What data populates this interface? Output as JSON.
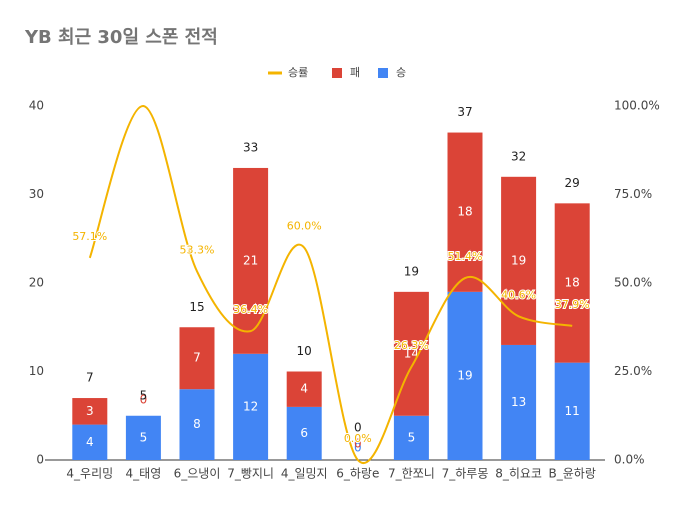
{
  "chart_data": {
    "type": "bar",
    "title": "YB 최근 30일 스폰 전적",
    "categories": [
      "4_우리밍",
      "4_태영",
      "6_으냉이",
      "7_빵지니",
      "4_일밍지",
      "6_하랑e",
      "7_한쪼니",
      "7_하루몽",
      "8_히요코",
      "B_윤하랑"
    ],
    "series": [
      {
        "name": "승",
        "color": "#4285f4",
        "values": [
          4,
          5,
          8,
          12,
          6,
          0,
          5,
          19,
          13,
          11
        ]
      },
      {
        "name": "패",
        "color": "#db4437",
        "values": [
          3,
          0,
          7,
          21,
          4,
          0,
          14,
          18,
          19,
          18
        ]
      },
      {
        "name": "승률",
        "type": "line",
        "axis": "y2",
        "color": "#f4b400",
        "values": [
          57.1,
          100,
          53.3,
          36.4,
          60.0,
          0.0,
          26.3,
          51.4,
          40.6,
          37.9
        ],
        "value_labels": [
          "57.1%",
          null,
          "53.3%",
          "36.4%",
          "60.0%",
          "0.0%",
          "26.3%",
          "51.4%",
          "40.6%",
          "37.9%"
        ]
      }
    ],
    "totals": [
      7,
      5,
      15,
      33,
      10,
      0,
      19,
      37,
      32,
      29
    ],
    "stacked": true,
    "ylim": [
      0,
      40
    ],
    "yticks": [
      0,
      10,
      20,
      30,
      40
    ],
    "y2lim": [
      0,
      100
    ],
    "y2ticks": [
      {
        "value": 0,
        "label": "0.0%"
      },
      {
        "value": 25,
        "label": "25.0%"
      },
      {
        "value": 50,
        "label": "50.0%"
      },
      {
        "value": 75,
        "label": "75.0%"
      },
      {
        "value": 100,
        "label": "100.0%"
      }
    ],
    "legend": "top",
    "grid": false
  }
}
